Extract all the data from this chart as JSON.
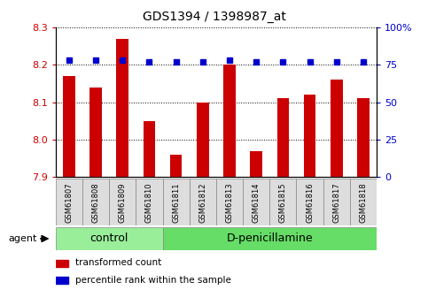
{
  "title": "GDS1394 / 1398987_at",
  "samples": [
    "GSM61807",
    "GSM61808",
    "GSM61809",
    "GSM61810",
    "GSM61811",
    "GSM61812",
    "GSM61813",
    "GSM61814",
    "GSM61815",
    "GSM61816",
    "GSM61817",
    "GSM61818"
  ],
  "bar_values": [
    8.17,
    8.14,
    8.27,
    8.05,
    7.96,
    8.1,
    8.2,
    7.97,
    8.11,
    8.12,
    8.16,
    8.11
  ],
  "percentile_display": [
    78,
    78,
    78,
    77,
    77,
    77,
    78,
    77,
    77,
    77,
    77,
    77
  ],
  "bar_color": "#cc0000",
  "percentile_color": "#0000cc",
  "ylim_left": [
    7.9,
    8.3
  ],
  "ylim_right": [
    0,
    100
  ],
  "yticks_left": [
    7.9,
    8.0,
    8.1,
    8.2,
    8.3
  ],
  "yticks_right": [
    0,
    25,
    50,
    75,
    100
  ],
  "group_boundary": 3.5,
  "groups": [
    {
      "label": "control",
      "color": "#99ee99"
    },
    {
      "label": "D-penicillamine",
      "color": "#66dd66"
    }
  ],
  "agent_label": "agent",
  "legend_bar_label": "transformed count",
  "legend_pct_label": "percentile rank within the sample",
  "bar_bottom": 7.9,
  "tick_label_color_left": "#cc0000",
  "tick_label_color_right": "#0000cc",
  "figsize": [
    4.83,
    3.45
  ],
  "dpi": 100
}
